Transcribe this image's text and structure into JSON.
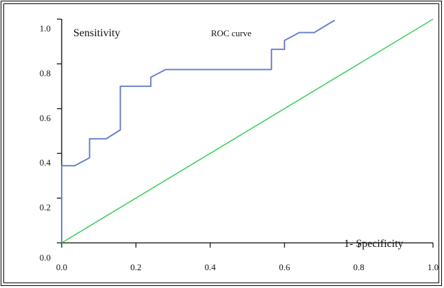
{
  "chart_data": {
    "type": "line",
    "title": "ROC curve",
    "xlabel": "1- Specificity",
    "ylabel": "Sensitivity",
    "xlim": [
      0,
      1
    ],
    "ylim": [
      0,
      1
    ],
    "x_ticks": [
      "0.0",
      "0.2",
      "0.4",
      "0.6",
      "0.8",
      "1.0"
    ],
    "y_ticks": [
      "0.0",
      "0.2",
      "0.4",
      "0.6",
      "0.8",
      "1.0"
    ],
    "grid": false,
    "colors": {
      "roc": "#6a7fcf",
      "reference": "#3fcf5a"
    },
    "series": [
      {
        "points": [
          [
            0.0,
            0.0
          ],
          [
            0.0,
            0.345
          ],
          [
            0.035,
            0.345
          ],
          [
            0.075,
            0.38
          ],
          [
            0.075,
            0.465
          ],
          [
            0.12,
            0.465
          ],
          [
            0.158,
            0.505
          ],
          [
            0.158,
            0.7
          ],
          [
            0.24,
            0.7
          ],
          [
            0.24,
            0.74
          ],
          [
            0.28,
            0.775
          ],
          [
            0.565,
            0.775
          ],
          [
            0.565,
            0.865
          ],
          [
            0.6,
            0.865
          ],
          [
            0.6,
            0.905
          ],
          [
            0.64,
            0.94
          ],
          [
            0.68,
            0.94
          ],
          [
            0.72,
            0.98
          ],
          [
            0.735,
            0.995
          ]
        ]
      },
      {
        "points": [
          [
            0.0,
            0.0
          ],
          [
            1.0,
            1.0
          ]
        ]
      }
    ]
  }
}
